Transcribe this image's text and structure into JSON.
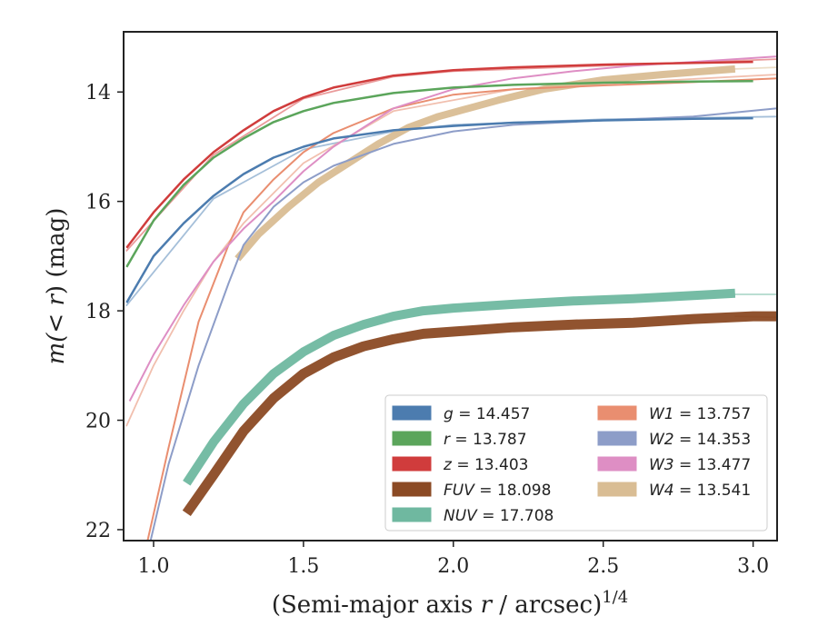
{
  "chart_data": {
    "type": "line",
    "xlabel_main": "(Semi-major axis ",
    "xlabel_var": "r",
    "xlabel_unit": " / arcsec)",
    "xlabel_exp": "1/4",
    "ylabel_prefix": "m(",
    "ylabel_var": "< r",
    "ylabel_suffix": ") (mag)",
    "xlim": [
      0.9,
      3.08
    ],
    "ylim": [
      22.2,
      12.9
    ],
    "y_inverted": true,
    "x_ticks": [
      1.0,
      1.5,
      2.0,
      2.5,
      3.0
    ],
    "x_tick_labels": [
      "1.0",
      "1.5",
      "2.0",
      "2.5",
      "3.0"
    ],
    "y_ticks": [
      14,
      16,
      18,
      20,
      22
    ],
    "y_tick_labels": [
      "14",
      "16",
      "18",
      "20",
      "22"
    ],
    "legend_position": "lower-right",
    "series": [
      {
        "band": "g",
        "value": "= 14.457",
        "color": "#4c7caf",
        "width": 2.5,
        "x": [
          0.91,
          1.0,
          1.1,
          1.2,
          1.3,
          1.4,
          1.5,
          1.6,
          1.8,
          2.0,
          2.2,
          2.5,
          2.8,
          3.0
        ],
        "y": [
          17.85,
          17.0,
          16.4,
          15.9,
          15.5,
          15.2,
          15.0,
          14.85,
          14.7,
          14.62,
          14.56,
          14.52,
          14.49,
          14.48
        ]
      },
      {
        "band": "r",
        "value": "= 13.787",
        "color": "#5ba55b",
        "width": 2.5,
        "x": [
          0.91,
          1.0,
          1.1,
          1.2,
          1.3,
          1.4,
          1.5,
          1.6,
          1.8,
          2.0,
          2.2,
          2.5,
          2.8,
          3.0
        ],
        "y": [
          17.2,
          16.35,
          15.7,
          15.2,
          14.85,
          14.55,
          14.35,
          14.2,
          14.02,
          13.92,
          13.87,
          13.83,
          13.81,
          13.8
        ]
      },
      {
        "band": "z",
        "value": "= 13.403",
        "color": "#d03c3c",
        "width": 2.5,
        "x": [
          0.91,
          1.0,
          1.1,
          1.2,
          1.3,
          1.4,
          1.5,
          1.6,
          1.8,
          2.0,
          2.2,
          2.5,
          2.8,
          3.0
        ],
        "y": [
          16.85,
          16.2,
          15.6,
          15.1,
          14.7,
          14.35,
          14.1,
          13.92,
          13.7,
          13.6,
          13.55,
          13.5,
          13.47,
          13.45
        ]
      },
      {
        "band": "FUV",
        "value": "= 18.098",
        "color": "#8b4a24",
        "width": 11,
        "x": [
          1.11,
          1.2,
          1.3,
          1.4,
          1.5,
          1.6,
          1.7,
          1.8,
          1.9,
          2.0,
          2.2,
          2.4,
          2.6,
          2.8,
          3.0,
          3.08
        ],
        "y": [
          21.7,
          21.0,
          20.2,
          19.6,
          19.15,
          18.85,
          18.65,
          18.52,
          18.42,
          18.38,
          18.3,
          18.25,
          18.22,
          18.15,
          18.1,
          18.1
        ]
      },
      {
        "band": "NUV",
        "value": "= 17.708",
        "color": "#6fb8a0",
        "width": 10,
        "x": [
          1.11,
          1.2,
          1.3,
          1.4,
          1.5,
          1.6,
          1.7,
          1.8,
          1.9,
          2.0,
          2.2,
          2.4,
          2.6,
          2.8,
          2.94
        ],
        "y": [
          21.15,
          20.4,
          19.7,
          19.15,
          18.75,
          18.45,
          18.25,
          18.1,
          18.0,
          17.95,
          17.88,
          17.82,
          17.78,
          17.72,
          17.68
        ]
      },
      {
        "band": "W1",
        "value": "= 13.757",
        "color": "#e98e70",
        "width": 2,
        "x": [
          0.98,
          1.05,
          1.15,
          1.25,
          1.3,
          1.4,
          1.5,
          1.6,
          1.8,
          2.0,
          2.2,
          2.5,
          2.8,
          3.08
        ],
        "y": [
          22.2,
          20.5,
          18.2,
          16.8,
          16.2,
          15.6,
          15.1,
          14.75,
          14.3,
          14.05,
          13.95,
          13.88,
          13.82,
          13.75
        ]
      },
      {
        "band": "W2",
        "value": "= 14.353",
        "color": "#8d9dc8",
        "width": 2,
        "x": [
          0.99,
          1.05,
          1.15,
          1.25,
          1.3,
          1.4,
          1.5,
          1.6,
          1.8,
          2.0,
          2.2,
          2.5,
          2.8,
          3.08
        ],
        "y": [
          22.2,
          20.8,
          19.0,
          17.5,
          16.8,
          16.1,
          15.65,
          15.35,
          14.95,
          14.72,
          14.6,
          14.52,
          14.45,
          14.3
        ]
      },
      {
        "band": "W3",
        "value": "= 13.477",
        "color": "#de8ec4",
        "width": 2,
        "x": [
          0.92,
          1.0,
          1.1,
          1.2,
          1.3,
          1.4,
          1.5,
          1.6,
          1.8,
          2.0,
          2.2,
          2.4,
          2.6,
          2.8,
          3.08
        ],
        "y": [
          19.65,
          18.8,
          17.9,
          17.1,
          16.5,
          16.0,
          15.45,
          15.0,
          14.3,
          13.95,
          13.75,
          13.62,
          13.52,
          13.45,
          13.35
        ]
      },
      {
        "band": "W4",
        "value": "= 13.541",
        "color": "#d9bd94",
        "width": 8,
        "x": [
          1.28,
          1.35,
          1.45,
          1.55,
          1.65,
          1.75,
          1.85,
          1.95,
          2.05,
          2.15,
          2.3,
          2.5,
          2.7,
          2.94
        ],
        "y": [
          17.05,
          16.6,
          16.1,
          15.65,
          15.3,
          14.95,
          14.65,
          14.45,
          14.3,
          14.15,
          13.95,
          13.78,
          13.68,
          13.58
        ]
      }
    ],
    "thin_overlays": [
      {
        "band": "g",
        "color": "#9bb8d5",
        "x": [
          0.91,
          1.2,
          1.5,
          1.8,
          2.0,
          2.5,
          3.08
        ],
        "y": [
          17.9,
          15.95,
          15.05,
          14.72,
          14.6,
          14.5,
          14.45
        ]
      },
      {
        "band": "z",
        "color": "#e89090",
        "x": [
          0.91,
          1.2,
          1.5,
          1.8,
          2.0,
          2.5,
          3.08
        ],
        "y": [
          16.9,
          15.15,
          14.12,
          13.72,
          13.62,
          13.52,
          13.4
        ]
      },
      {
        "band": "W1",
        "color": "#f0b8a5",
        "x": [
          0.91,
          1.0,
          1.1,
          1.2,
          1.3,
          1.5,
          1.8,
          2.2,
          2.6,
          3.08
        ],
        "y": [
          20.1,
          19.0,
          18.0,
          17.1,
          16.4,
          15.3,
          14.35,
          13.95,
          13.82,
          13.68
        ]
      },
      {
        "band": "NUV",
        "color": "#a8d6c6",
        "x": [
          2.94,
          3.08
        ],
        "y": [
          17.7,
          17.7
        ]
      },
      {
        "band": "FUV",
        "color": "#c59a80",
        "x": [
          2.94,
          3.08
        ],
        "y": [
          18.1,
          18.12
        ]
      },
      {
        "band": "W4",
        "color": "#ead9c0",
        "x": [
          2.94,
          3.08
        ],
        "y": [
          13.58,
          13.55
        ]
      }
    ],
    "legend": {
      "left": [
        "g",
        "r",
        "z",
        "FUV",
        "NUV"
      ],
      "right": [
        "W1",
        "W2",
        "W3",
        "W4"
      ]
    }
  }
}
